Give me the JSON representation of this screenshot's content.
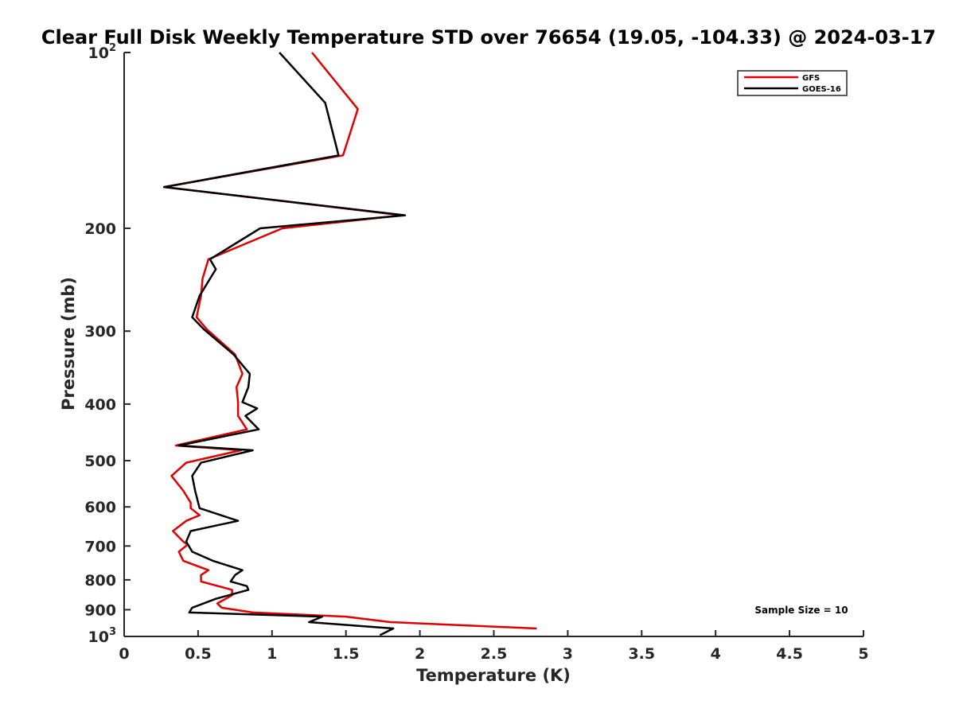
{
  "chart_data": {
    "type": "line",
    "title": "Clear Full Disk Weekly Temperature STD over 76654 (19.05, -104.33) @ 2024-03-17",
    "xlabel": "Temperature (K)",
    "ylabel": "Pressure (mb)",
    "xlim": [
      0,
      5
    ],
    "ylim": [
      100,
      1000
    ],
    "yscale": "log",
    "y_reversed": true,
    "xticks": [
      0,
      0.5,
      1,
      1.5,
      2,
      2.5,
      3,
      3.5,
      4,
      4.5,
      5
    ],
    "xtick_labels": [
      "0",
      "0.5",
      "1",
      "1.5",
      "2",
      "2.5",
      "3",
      "3.5",
      "4",
      "4.5",
      "5"
    ],
    "yticks": [
      {
        "value": 100,
        "base": "10",
        "exp": "2"
      },
      {
        "value": 200,
        "label": "200"
      },
      {
        "value": 300,
        "label": "300"
      },
      {
        "value": 400,
        "label": "400"
      },
      {
        "value": 500,
        "label": "500"
      },
      {
        "value": 600,
        "label": "600"
      },
      {
        "value": 700,
        "label": "700"
      },
      {
        "value": 800,
        "label": "800"
      },
      {
        "value": 900,
        "label": "900"
      },
      {
        "value": 1000,
        "base": "10",
        "exp": "3"
      }
    ],
    "grid": false,
    "legend_position": "top-right",
    "annotation": "Sample Size = 10",
    "series": [
      {
        "name": "GFS",
        "color": "#e00000",
        "points": [
          [
            1.27,
            100
          ],
          [
            1.58,
            125
          ],
          [
            1.48,
            150
          ],
          [
            0.27,
            170
          ],
          [
            1.88,
            190
          ],
          [
            1.07,
            200
          ],
          [
            0.57,
            226
          ],
          [
            0.53,
            244
          ],
          [
            0.52,
            261
          ],
          [
            0.49,
            284
          ],
          [
            0.56,
            298
          ],
          [
            0.75,
            329
          ],
          [
            0.8,
            355
          ],
          [
            0.76,
            374
          ],
          [
            0.77,
            397
          ],
          [
            0.77,
            419
          ],
          [
            0.83,
            442
          ],
          [
            0.35,
            471
          ],
          [
            0.79,
            480
          ],
          [
            0.42,
            504
          ],
          [
            0.32,
            531
          ],
          [
            0.4,
            563
          ],
          [
            0.45,
            590
          ],
          [
            0.45,
            603
          ],
          [
            0.51,
            620
          ],
          [
            0.42,
            634
          ],
          [
            0.33,
            660
          ],
          [
            0.4,
            688
          ],
          [
            0.43,
            696
          ],
          [
            0.37,
            716
          ],
          [
            0.4,
            742
          ],
          [
            0.57,
            770
          ],
          [
            0.52,
            785
          ],
          [
            0.52,
            805
          ],
          [
            0.73,
            832
          ],
          [
            0.73,
            850
          ],
          [
            0.63,
            878
          ],
          [
            0.66,
            893
          ],
          [
            0.87,
            910
          ],
          [
            1.5,
            925
          ],
          [
            1.8,
            945
          ],
          [
            2.79,
            969
          ]
        ]
      },
      {
        "name": "GOES-16",
        "color": "#000000",
        "points": [
          [
            1.05,
            100
          ],
          [
            1.36,
            122
          ],
          [
            1.45,
            150
          ],
          [
            0.27,
            170
          ],
          [
            1.9,
            190
          ],
          [
            0.92,
            200
          ],
          [
            0.58,
            226
          ],
          [
            0.62,
            235
          ],
          [
            0.51,
            261
          ],
          [
            0.46,
            284
          ],
          [
            0.54,
            298
          ],
          [
            0.74,
            329
          ],
          [
            0.85,
            355
          ],
          [
            0.84,
            374
          ],
          [
            0.8,
            397
          ],
          [
            0.9,
            407
          ],
          [
            0.82,
            419
          ],
          [
            0.91,
            442
          ],
          [
            0.37,
            471
          ],
          [
            0.87,
            480
          ],
          [
            0.52,
            504
          ],
          [
            0.46,
            531
          ],
          [
            0.48,
            563
          ],
          [
            0.51,
            603
          ],
          [
            0.77,
            634
          ],
          [
            0.45,
            660
          ],
          [
            0.42,
            688
          ],
          [
            0.46,
            716
          ],
          [
            0.6,
            742
          ],
          [
            0.8,
            770
          ],
          [
            0.75,
            785
          ],
          [
            0.72,
            805
          ],
          [
            0.83,
            820
          ],
          [
            0.84,
            832
          ],
          [
            0.62,
            862
          ],
          [
            0.46,
            893
          ],
          [
            0.44,
            910
          ],
          [
            1.34,
            925
          ],
          [
            1.25,
            945
          ],
          [
            1.82,
            969
          ],
          [
            1.73,
            995
          ]
        ]
      }
    ]
  }
}
